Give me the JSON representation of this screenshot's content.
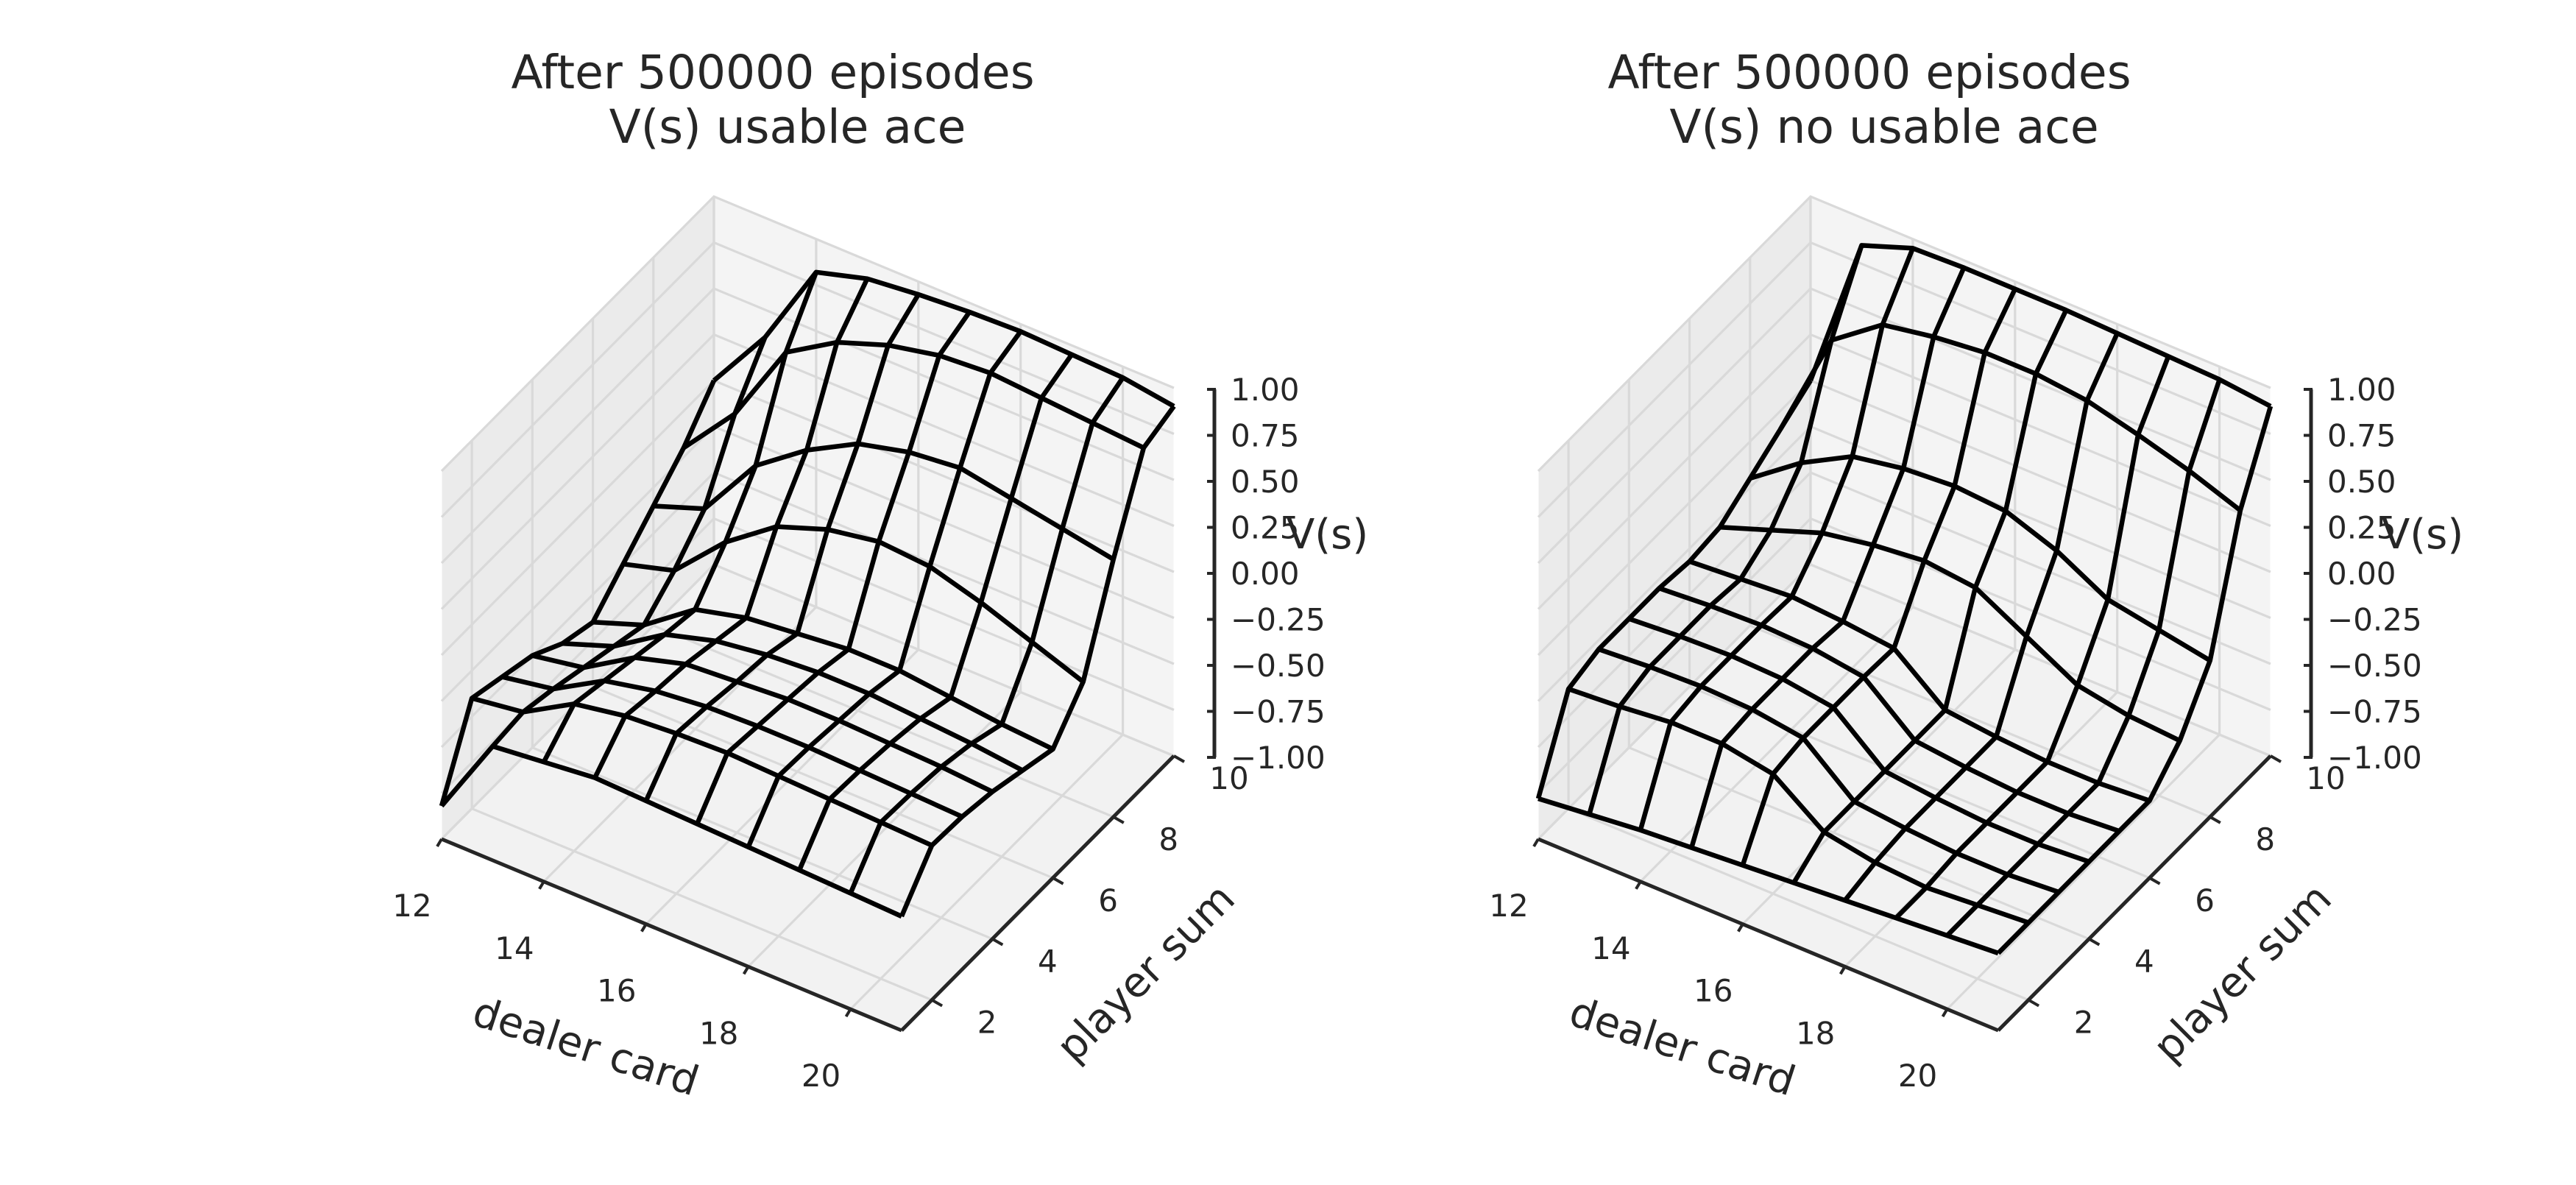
{
  "chart_data": [
    {
      "type": "wireframe-3d",
      "title": "After 500000 episodes\n V(s) usable ace",
      "xlabel": "dealer card",
      "ylabel": "player sum",
      "zlabel": "V(s)",
      "x_ticks": [
        "12",
        "14",
        "16",
        "18",
        "20"
      ],
      "y_ticks": [
        "2",
        "4",
        "6",
        "8",
        "10"
      ],
      "z_ticks": [
        "1.00",
        "0.75",
        "0.50",
        "0.25",
        "0.00",
        "−0.25",
        "−0.50",
        "−0.75",
        "−1.00"
      ],
      "xlim": [
        12,
        21
      ],
      "ylim": [
        1,
        10
      ],
      "zlim": [
        -1,
        1
      ],
      "x": [
        12,
        13,
        14,
        15,
        16,
        17,
        18,
        19,
        20,
        21
      ],
      "y": [
        1,
        2,
        3,
        4,
        5,
        6,
        7,
        8,
        9,
        10
      ],
      "z": [
        [
          -0.82,
          -0.38,
          -0.35,
          -0.32,
          -0.33,
          -0.34,
          -0.35,
          -0.36,
          -0.37,
          -0.38
        ],
        [
          -0.4,
          -0.36,
          -0.2,
          -0.15,
          -0.13,
          -0.12,
          -0.13,
          -0.14,
          -0.15,
          -0.16
        ],
        [
          -0.45,
          -0.4,
          -0.24,
          -0.18,
          -0.15,
          -0.14,
          -0.14,
          -0.15,
          -0.16,
          -0.17
        ],
        [
          -0.5,
          -0.45,
          -0.28,
          -0.2,
          -0.18,
          -0.16,
          -0.16,
          -0.17,
          -0.18,
          -0.2
        ],
        [
          -0.6,
          -0.5,
          -0.32,
          -0.24,
          -0.2,
          -0.18,
          -0.18,
          -0.2,
          -0.22,
          -0.25
        ],
        [
          -0.65,
          -0.55,
          -0.35,
          -0.28,
          -0.25,
          -0.22,
          -0.22,
          -0.25,
          -0.28,
          -0.3
        ],
        [
          -0.5,
          -0.42,
          -0.15,
          0.05,
          0.15,
          0.2,
          0.18,
          0.1,
          0.0,
          -0.1
        ],
        [
          -0.35,
          -0.25,
          0.1,
          0.3,
          0.45,
          0.52,
          0.55,
          0.5,
          0.45,
          0.4
        ],
        [
          -0.2,
          0.1,
          0.55,
          0.72,
          0.82,
          0.88,
          0.9,
          0.88,
          0.86,
          0.84
        ],
        [
          0.0,
          0.35,
          0.82,
          0.9,
          0.93,
          0.95,
          0.96,
          0.95,
          0.94,
          0.9
        ]
      ]
    },
    {
      "type": "wireframe-3d",
      "title": "After 500000 episodes\n V(s) no usable ace",
      "xlabel": "dealer card",
      "ylabel": "player sum",
      "zlabel": "V(s)",
      "x_ticks": [
        "12",
        "14",
        "16",
        "18",
        "20"
      ],
      "y_ticks": [
        "2",
        "4",
        "6",
        "8",
        "10"
      ],
      "z_ticks": [
        "1.00",
        "0.75",
        "0.50",
        "0.25",
        "0.00",
        "−0.25",
        "−0.50",
        "−0.75",
        "−1.00"
      ],
      "xlim": [
        12,
        21
      ],
      "ylim": [
        1,
        10
      ],
      "zlim": [
        -1,
        1
      ],
      "x": [
        12,
        13,
        14,
        15,
        16,
        17,
        18,
        19,
        20,
        21
      ],
      "y": [
        1,
        2,
        3,
        4,
        5,
        6,
        7,
        8,
        9,
        10
      ],
      "z": [
        [
          -0.78,
          -0.75,
          -0.72,
          -0.7,
          -0.68,
          -0.66,
          -0.64,
          -0.62,
          -0.6,
          -0.58
        ],
        [
          -0.35,
          -0.33,
          -0.3,
          -0.3,
          -0.35,
          -0.55,
          -0.6,
          -0.62,
          -0.6,
          -0.58
        ],
        [
          -0.3,
          -0.28,
          -0.27,
          -0.28,
          -0.32,
          -0.55,
          -0.58,
          -0.6,
          -0.6,
          -0.58
        ],
        [
          -0.3,
          -0.28,
          -0.27,
          -0.28,
          -0.32,
          -0.55,
          -0.58,
          -0.6,
          -0.6,
          -0.58
        ],
        [
          -0.3,
          -0.28,
          -0.27,
          -0.28,
          -0.32,
          -0.55,
          -0.58,
          -0.6,
          -0.6,
          -0.58
        ],
        [
          -0.32,
          -0.3,
          -0.28,
          -0.3,
          -0.33,
          -0.55,
          -0.58,
          -0.6,
          -0.6,
          -0.58
        ],
        [
          -0.3,
          -0.2,
          -0.1,
          -0.05,
          -0.02,
          -0.05,
          -0.2,
          -0.35,
          -0.4,
          -0.42
        ],
        [
          -0.2,
          0.0,
          0.15,
          0.2,
          0.22,
          0.2,
          0.1,
          -0.05,
          -0.1,
          -0.15
        ],
        [
          -0.1,
          0.5,
          0.7,
          0.75,
          0.78,
          0.78,
          0.75,
          0.68,
          0.6,
          0.5
        ],
        [
          0.0,
          0.85,
          0.95,
          0.96,
          0.96,
          0.96,
          0.95,
          0.94,
          0.93,
          0.9
        ]
      ]
    }
  ]
}
